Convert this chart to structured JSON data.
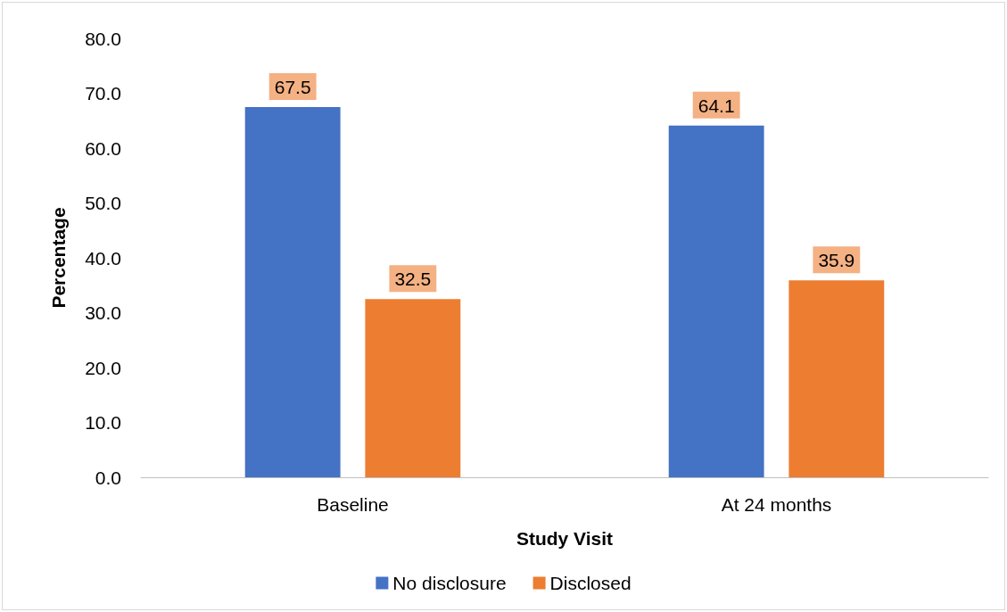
{
  "chart_data": {
    "type": "bar",
    "xlabel": "Study Visit",
    "ylabel": "Percentage",
    "categories": [
      "Baseline",
      "At 24 months"
    ],
    "series": [
      {
        "name": "No disclosure",
        "color": "#4472c4",
        "values": [
          67.5,
          64.1
        ]
      },
      {
        "name": "Disclosed",
        "color": "#ed7d31",
        "values": [
          32.5,
          35.9
        ]
      }
    ],
    "ylim": [
      0,
      80
    ],
    "yticks": [
      {
        "value": 0,
        "label": "0.0"
      },
      {
        "value": 10,
        "label": "10.0"
      },
      {
        "value": 20,
        "label": "20.0"
      },
      {
        "value": 30,
        "label": "30.0"
      },
      {
        "value": 40,
        "label": "40.0"
      },
      {
        "value": 50,
        "label": "50.0"
      },
      {
        "value": 60,
        "label": "60.0"
      },
      {
        "value": 70,
        "label": "70.0"
      },
      {
        "value": 80,
        "label": "80.0"
      }
    ],
    "data_labels": true,
    "grid": false,
    "legend": "bottom"
  }
}
